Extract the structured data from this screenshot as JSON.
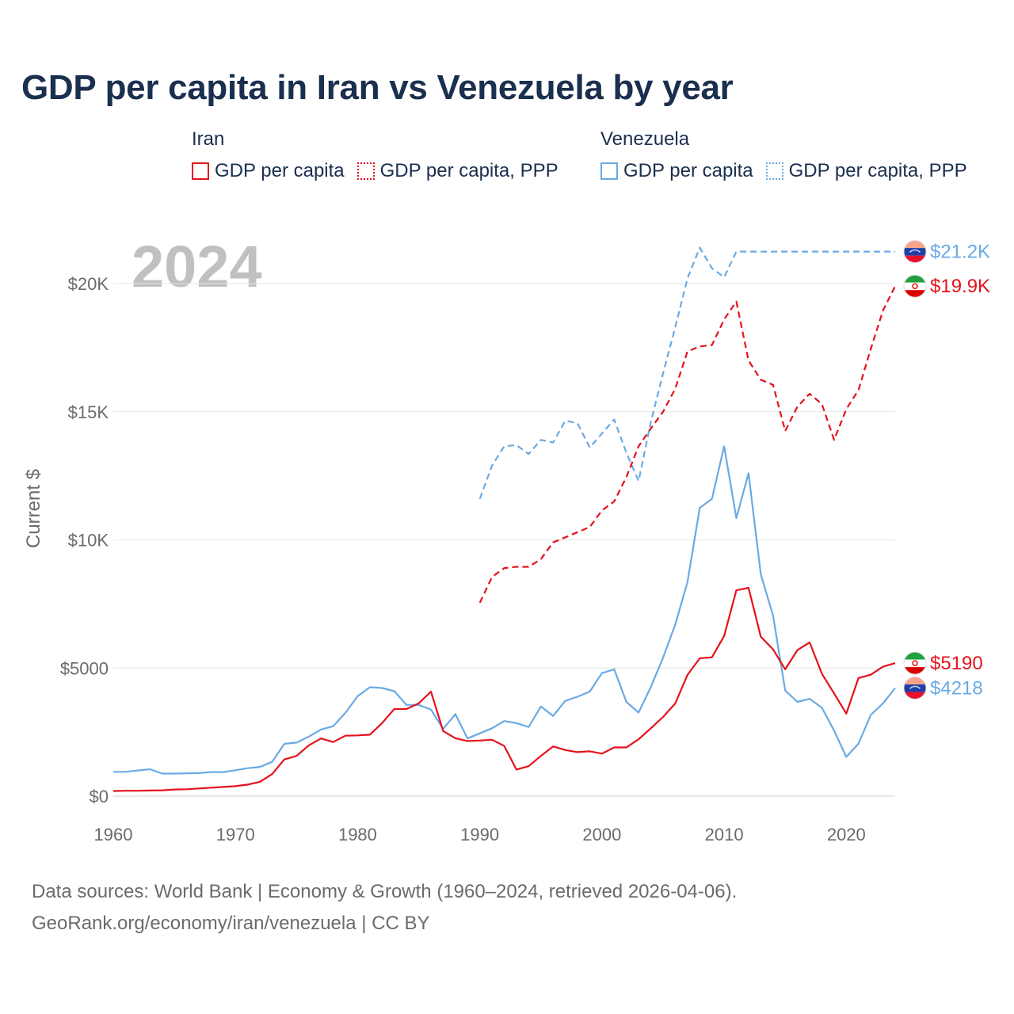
{
  "title": "GDP per capita in Iran vs Venezuela by year",
  "legend": {
    "groups": [
      {
        "name": "Iran",
        "color": "#e4121c",
        "items": [
          {
            "label": "GDP per capita",
            "style": "solid"
          },
          {
            "label": "GDP per capita, PPP",
            "style": "dotted"
          }
        ]
      },
      {
        "name": "Venezuela",
        "color": "#6aaae4",
        "items": [
          {
            "label": "GDP per capita",
            "style": "solid"
          },
          {
            "label": "GDP per capita, PPP",
            "style": "dotted"
          }
        ]
      }
    ]
  },
  "chart_data": {
    "type": "line",
    "title": "GDP per capita in Iran vs Venezuela by year",
    "year_label": "2024",
    "xlabel": "",
    "ylabel": "Current $",
    "xlim": [
      1960,
      2024
    ],
    "ylim": [
      0,
      20000
    ],
    "x_ticks": [
      1960,
      1970,
      1980,
      1990,
      2000,
      2010,
      2020
    ],
    "y_ticks": [
      {
        "value": 0,
        "label": "$0"
      },
      {
        "value": 5000,
        "label": "$5000"
      },
      {
        "value": 10000,
        "label": "$10K"
      },
      {
        "value": 15000,
        "label": "$15K"
      },
      {
        "value": 20000,
        "label": "$20K"
      }
    ],
    "series": [
      {
        "name": "Venezuela GDP per capita, PPP",
        "country": "Venezuela",
        "color": "#6aaae4",
        "dash": "dashed",
        "end_label": "$21.2K",
        "points": [
          [
            1990,
            11600
          ],
          [
            1991,
            12900
          ],
          [
            1992,
            13650
          ],
          [
            1993,
            13700
          ],
          [
            1994,
            13350
          ],
          [
            1995,
            13900
          ],
          [
            1996,
            13800
          ],
          [
            1997,
            14650
          ],
          [
            1998,
            14550
          ],
          [
            1999,
            13600
          ],
          [
            2000,
            14150
          ],
          [
            2001,
            14700
          ],
          [
            2002,
            13400
          ],
          [
            2003,
            12300
          ],
          [
            2004,
            14600
          ],
          [
            2005,
            16500
          ],
          [
            2006,
            18300
          ],
          [
            2007,
            20200
          ],
          [
            2008,
            21400
          ],
          [
            2009,
            20600
          ],
          [
            2010,
            20250
          ],
          [
            2011,
            21250
          ],
          [
            2024,
            21250
          ]
        ]
      },
      {
        "name": "Iran GDP per capita, PPP",
        "country": "Iran",
        "color": "#e4121c",
        "dash": "dashed",
        "end_label": "$19.9K",
        "points": [
          [
            1990,
            7550
          ],
          [
            1991,
            8550
          ],
          [
            1992,
            8900
          ],
          [
            1993,
            8950
          ],
          [
            1994,
            8950
          ],
          [
            1995,
            9250
          ],
          [
            1996,
            9900
          ],
          [
            1997,
            10100
          ],
          [
            1998,
            10300
          ],
          [
            1999,
            10500
          ],
          [
            2000,
            11150
          ],
          [
            2001,
            11500
          ],
          [
            2002,
            12450
          ],
          [
            2003,
            13650
          ],
          [
            2004,
            14350
          ],
          [
            2005,
            15000
          ],
          [
            2006,
            15900
          ],
          [
            2007,
            17350
          ],
          [
            2008,
            17550
          ],
          [
            2009,
            17600
          ],
          [
            2010,
            18600
          ],
          [
            2011,
            19300
          ],
          [
            2012,
            17000
          ],
          [
            2013,
            16250
          ],
          [
            2014,
            16050
          ],
          [
            2015,
            14250
          ],
          [
            2016,
            15200
          ],
          [
            2017,
            15700
          ],
          [
            2018,
            15300
          ],
          [
            2019,
            13900
          ],
          [
            2020,
            15100
          ],
          [
            2021,
            15850
          ],
          [
            2022,
            17450
          ],
          [
            2023,
            18950
          ],
          [
            2024,
            19900
          ]
        ]
      },
      {
        "name": "Venezuela GDP per capita",
        "country": "Venezuela",
        "color": "#6aaae4",
        "dash": "solid",
        "end_label": "$4218",
        "points": [
          [
            1960,
            950
          ],
          [
            1961,
            950
          ],
          [
            1962,
            1000
          ],
          [
            1963,
            1050
          ],
          [
            1964,
            880
          ],
          [
            1965,
            880
          ],
          [
            1966,
            890
          ],
          [
            1967,
            900
          ],
          [
            1968,
            940
          ],
          [
            1969,
            940
          ],
          [
            1970,
            1010
          ],
          [
            1971,
            1090
          ],
          [
            1972,
            1140
          ],
          [
            1973,
            1340
          ],
          [
            1974,
            2040
          ],
          [
            1975,
            2090
          ],
          [
            1976,
            2320
          ],
          [
            1977,
            2600
          ],
          [
            1978,
            2730
          ],
          [
            1979,
            3250
          ],
          [
            1980,
            3900
          ],
          [
            1981,
            4250
          ],
          [
            1982,
            4220
          ],
          [
            1983,
            4100
          ],
          [
            1984,
            3560
          ],
          [
            1985,
            3560
          ],
          [
            1986,
            3380
          ],
          [
            1987,
            2620
          ],
          [
            1988,
            3200
          ],
          [
            1989,
            2250
          ],
          [
            1990,
            2450
          ],
          [
            1991,
            2650
          ],
          [
            1992,
            2930
          ],
          [
            1993,
            2850
          ],
          [
            1994,
            2700
          ],
          [
            1995,
            3500
          ],
          [
            1996,
            3130
          ],
          [
            1997,
            3720
          ],
          [
            1998,
            3880
          ],
          [
            1999,
            4080
          ],
          [
            2000,
            4800
          ],
          [
            2001,
            4950
          ],
          [
            2002,
            3680
          ],
          [
            2003,
            3260
          ],
          [
            2004,
            4260
          ],
          [
            2005,
            5400
          ],
          [
            2006,
            6700
          ],
          [
            2007,
            8350
          ],
          [
            2008,
            11250
          ],
          [
            2009,
            11600
          ],
          [
            2010,
            13650
          ],
          [
            2011,
            10850
          ],
          [
            2012,
            12600
          ],
          [
            2013,
            8650
          ],
          [
            2014,
            7050
          ],
          [
            2015,
            4120
          ],
          [
            2016,
            3680
          ],
          [
            2017,
            3800
          ],
          [
            2018,
            3450
          ],
          [
            2019,
            2560
          ],
          [
            2020,
            1530
          ],
          [
            2021,
            2050
          ],
          [
            2022,
            3170
          ],
          [
            2023,
            3620
          ],
          [
            2024,
            4218
          ]
        ]
      },
      {
        "name": "Iran GDP per capita",
        "country": "Iran",
        "color": "#e4121c",
        "dash": "solid",
        "end_label": "$5190",
        "points": [
          [
            1960,
            200
          ],
          [
            1961,
            210
          ],
          [
            1962,
            210
          ],
          [
            1963,
            220
          ],
          [
            1964,
            230
          ],
          [
            1965,
            260
          ],
          [
            1966,
            270
          ],
          [
            1967,
            300
          ],
          [
            1968,
            330
          ],
          [
            1969,
            360
          ],
          [
            1970,
            390
          ],
          [
            1971,
            450
          ],
          [
            1972,
            560
          ],
          [
            1973,
            860
          ],
          [
            1974,
            1430
          ],
          [
            1975,
            1570
          ],
          [
            1976,
            1980
          ],
          [
            1977,
            2250
          ],
          [
            1978,
            2110
          ],
          [
            1979,
            2360
          ],
          [
            1980,
            2370
          ],
          [
            1981,
            2400
          ],
          [
            1982,
            2850
          ],
          [
            1983,
            3400
          ],
          [
            1984,
            3400
          ],
          [
            1985,
            3620
          ],
          [
            1986,
            4080
          ],
          [
            1987,
            2540
          ],
          [
            1988,
            2260
          ],
          [
            1989,
            2150
          ],
          [
            1990,
            2170
          ],
          [
            1991,
            2200
          ],
          [
            1992,
            1960
          ],
          [
            1993,
            1040
          ],
          [
            1994,
            1170
          ],
          [
            1995,
            1570
          ],
          [
            1996,
            1940
          ],
          [
            1997,
            1800
          ],
          [
            1998,
            1720
          ],
          [
            1999,
            1750
          ],
          [
            2000,
            1660
          ],
          [
            2001,
            1900
          ],
          [
            2002,
            1900
          ],
          [
            2003,
            2220
          ],
          [
            2004,
            2650
          ],
          [
            2005,
            3090
          ],
          [
            2006,
            3620
          ],
          [
            2007,
            4730
          ],
          [
            2008,
            5380
          ],
          [
            2009,
            5420
          ],
          [
            2010,
            6250
          ],
          [
            2011,
            8030
          ],
          [
            2012,
            8130
          ],
          [
            2013,
            6220
          ],
          [
            2014,
            5730
          ],
          [
            2015,
            4950
          ],
          [
            2016,
            5700
          ],
          [
            2017,
            6000
          ],
          [
            2018,
            4780
          ],
          [
            2019,
            4010
          ],
          [
            2020,
            3220
          ],
          [
            2021,
            4610
          ],
          [
            2022,
            4740
          ],
          [
            2023,
            5050
          ],
          [
            2024,
            5190
          ]
        ]
      }
    ]
  },
  "source": {
    "line1": "Data sources: World Bank | Economy & Growth (1960–2024, retrieved 2026-04-06).",
    "line2": "GeoRank.org/economy/iran/venezuela | CC BY"
  }
}
